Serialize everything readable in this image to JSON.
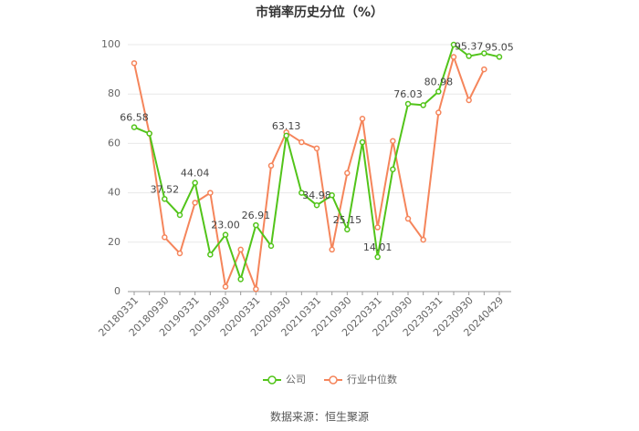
{
  "chart_data": {
    "type": "line",
    "title": "市销率历史分位（%）",
    "source": "数据来源：恒生聚源",
    "categories": [
      "20180331",
      null,
      "20180930",
      null,
      "20190331",
      null,
      "20190930",
      null,
      "20200331",
      null,
      "20200930",
      null,
      "20210331",
      null,
      "20210930",
      null,
      "20220331",
      null,
      "20220930",
      null,
      "20230331",
      null,
      "20230930",
      null,
      "20240429"
    ],
    "series": [
      {
        "name": "公司",
        "color": "#52c41a",
        "values": [
          66.58,
          64,
          37.52,
          31,
          44.04,
          15,
          23.0,
          5,
          26.91,
          18.5,
          63.13,
          40,
          34.98,
          39,
          25.15,
          60.5,
          14.01,
          49.5,
          76.03,
          75.5,
          80.98,
          100,
          95.37,
          96.5,
          95.05
        ],
        "value_labels": [
          "66.58",
          null,
          "37.52",
          null,
          "44.04",
          null,
          "23.00",
          null,
          "26.91",
          null,
          "63.13",
          null,
          "34.98",
          null,
          "25.15",
          null,
          "14.01",
          null,
          "76.03",
          null,
          "80.98",
          null,
          "95.37",
          null,
          "95.05"
        ]
      },
      {
        "name": "行业中位数",
        "color": "#f5855b",
        "values": [
          92.5,
          64,
          22,
          15.5,
          36,
          40,
          2,
          17,
          1,
          51,
          64.5,
          60.5,
          58,
          17,
          48,
          70,
          26,
          61,
          29.5,
          21,
          72.5,
          95,
          77.5,
          90,
          null
        ]
      }
    ],
    "ylim": [
      0,
      100
    ],
    "yticks": [
      0,
      20,
      40,
      60,
      80,
      100
    ],
    "grid": true,
    "legend": "bottom"
  }
}
